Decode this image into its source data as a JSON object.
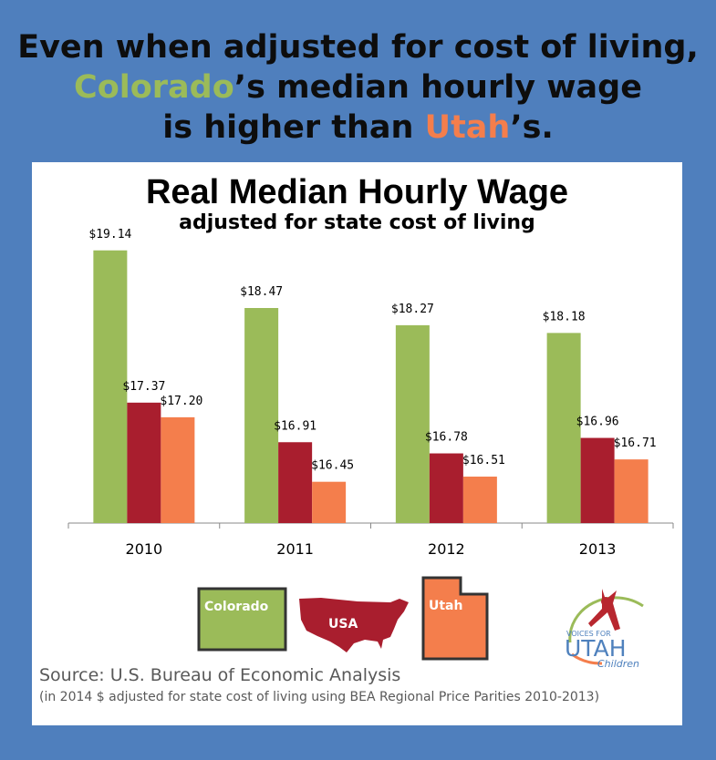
{
  "headline": {
    "line1": "Even when adjusted for cost of living,",
    "co": "Colorado",
    "line2_rest": "’s median hourly wage",
    "line3_a": "is higher than ",
    "ut": "Utah",
    "line3_b": "’s."
  },
  "chart_data": {
    "type": "bar",
    "title": "Real Median Hourly Wage",
    "subtitle": "adjusted for state cost of living",
    "categories": [
      "2010",
      "2011",
      "2012",
      "2013"
    ],
    "series": [
      {
        "name": "Colorado",
        "color": "#9bbb59",
        "values": [
          19.14,
          18.47,
          18.27,
          18.18
        ],
        "labels": [
          "$19.14",
          "$18.47",
          "$18.27",
          "$18.18"
        ]
      },
      {
        "name": "USA",
        "color": "#a91e2e",
        "values": [
          17.37,
          16.91,
          16.78,
          16.96
        ],
        "labels": [
          "$17.37",
          "$16.91",
          "$16.78",
          "$16.96"
        ]
      },
      {
        "name": "Utah",
        "color": "#f47e4c",
        "values": [
          17.2,
          16.45,
          16.51,
          16.71
        ],
        "labels": [
          "$17.20",
          "$16.45",
          "$16.51",
          "$16.71"
        ]
      }
    ],
    "ylim": [
      15.97,
      19.5
    ],
    "grid": false,
    "legend": "bottom"
  },
  "legend": {
    "colorado": "Colorado",
    "usa": "USA",
    "utah": "Utah"
  },
  "logo": {
    "top": "VOICES FOR",
    "main": "UTAH",
    "bottom": "Children"
  },
  "source": "Source: U.S. Bureau of Economic Analysis",
  "note": "(in 2014 $ adjusted for state cost of living using BEA Regional Price Parities 2010-2013)"
}
